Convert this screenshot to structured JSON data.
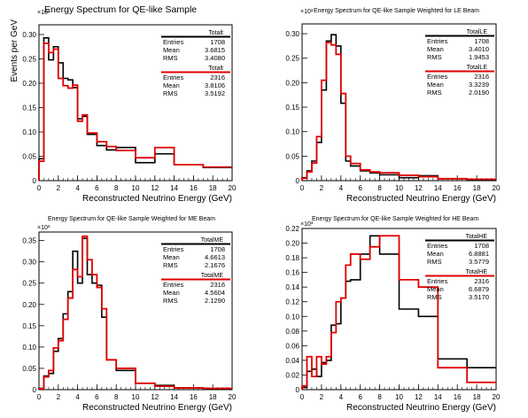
{
  "figure_ylabel": "Events per GeV",
  "colors": {
    "black": "#000000",
    "red": "#e00000"
  },
  "chart_data": [
    {
      "type": "line",
      "title": "Energy Spectrum for QE-like Sample",
      "xlabel": "Reconstructed Neutrino Energy (GeV)",
      "ylabel": "Events per GeV",
      "exponent_label": "×10³",
      "xlim": [
        0,
        20
      ],
      "ylim": [
        0,
        0.32
      ],
      "xticks": [
        "0",
        "2",
        "4",
        "6",
        "8",
        "10",
        "12",
        "14",
        "16",
        "18",
        "20"
      ],
      "yticks": [
        "0",
        "0.05",
        "0.10",
        "0.15",
        "0.20",
        "0.25",
        "0.30"
      ],
      "grid": false,
      "legend_position": "top-right",
      "bin_edges": [
        0,
        0.5,
        1,
        1.5,
        2,
        2.5,
        3,
        3.5,
        4,
        4.5,
        5,
        6,
        7,
        8,
        10,
        12,
        14,
        17,
        20
      ],
      "series": [
        {
          "name": "Totalt",
          "color": "#000000",
          "values": [
            0.045,
            0.293,
            0.248,
            0.275,
            0.242,
            0.21,
            0.207,
            0.191,
            0.127,
            0.132,
            0.095,
            0.072,
            0.063,
            0.068,
            0.037,
            0.055,
            0.033,
            0.027
          ]
        },
        {
          "name": "Totalt",
          "color": "#e00000",
          "values": [
            0.04,
            0.282,
            0.263,
            0.27,
            0.21,
            0.195,
            0.19,
            0.196,
            0.122,
            0.135,
            0.098,
            0.08,
            0.07,
            0.062,
            0.047,
            0.068,
            0.033,
            0.028
          ]
        }
      ],
      "stats": [
        {
          "name": "Totalt",
          "color": "#000000",
          "rows": [
            {
              "label": "Entries",
              "value": "1708"
            },
            {
              "label": "Mean",
              "value": "3.6815"
            },
            {
              "label": "RMS",
              "value": "3.4080"
            }
          ]
        },
        {
          "name": "Totalt",
          "color": "#e00000",
          "rows": [
            {
              "label": "Entries",
              "value": "2316"
            },
            {
              "label": "Mean",
              "value": "3.8106"
            },
            {
              "label": "RMS",
              "value": "3.5192"
            }
          ]
        }
      ]
    },
    {
      "type": "line",
      "title": "Energy Spectrum for QE-like Sample Weighted for LE Beam",
      "xlabel": "Reconstructed Neutrino Energy (GeV)",
      "ylabel": "",
      "exponent_label": "×10³",
      "xlim": [
        0,
        20
      ],
      "ylim": [
        0,
        0.32
      ],
      "xticks": [
        "0",
        "2",
        "4",
        "6",
        "8",
        "10",
        "12",
        "14",
        "16",
        "18",
        "20"
      ],
      "yticks": [
        "0",
        "0.05",
        "0.10",
        "0.15",
        "0.20",
        "0.25",
        "0.30"
      ],
      "grid": false,
      "legend_position": "top-right",
      "bin_edges": [
        0,
        0.5,
        1,
        1.5,
        2,
        2.5,
        3,
        3.5,
        4,
        4.5,
        5,
        6,
        7,
        8,
        10,
        12,
        14,
        17,
        20
      ],
      "series": [
        {
          "name": "TotalLE",
          "color": "#000000",
          "values": [
            0.006,
            0.02,
            0.04,
            0.078,
            0.185,
            0.285,
            0.298,
            0.275,
            0.158,
            0.04,
            0.03,
            0.02,
            0.016,
            0.012,
            0.006,
            0.01,
            0.004,
            0.002
          ]
        },
        {
          "name": "TotalLE",
          "color": "#e00000",
          "values": [
            0.005,
            0.018,
            0.036,
            0.09,
            0.205,
            0.282,
            0.277,
            0.258,
            0.178,
            0.05,
            0.035,
            0.022,
            0.018,
            0.016,
            0.011,
            0.008,
            0.004,
            0.003
          ]
        }
      ],
      "stats": [
        {
          "name": "TotalLE",
          "color": "#000000",
          "rows": [
            {
              "label": "Entries",
              "value": "1708"
            },
            {
              "label": "Mean",
              "value": "3.4010"
            },
            {
              "label": "RMS",
              "value": "1.9453"
            }
          ]
        },
        {
          "name": "TotalLE",
          "color": "#e00000",
          "rows": [
            {
              "label": "Entries",
              "value": "2316"
            },
            {
              "label": "Mean",
              "value": "3.3239"
            },
            {
              "label": "RMS",
              "value": "2.0190"
            }
          ]
        }
      ]
    },
    {
      "type": "line",
      "title": "Energy Spectrum for QE-like Sample Weighted for ME Beam",
      "xlabel": "Reconstructed Neutrino Energy (GeV)",
      "ylabel": "",
      "exponent_label": "×10³",
      "xlim": [
        0,
        20
      ],
      "ylim": [
        0,
        0.37
      ],
      "xticks": [
        "0",
        "2",
        "4",
        "6",
        "8",
        "10",
        "12",
        "14",
        "16",
        "18",
        "20"
      ],
      "yticks": [
        "0",
        "0.05",
        "0.10",
        "0.15",
        "0.20",
        "0.25",
        "0.30",
        "0.35"
      ],
      "grid": false,
      "legend_position": "top-right",
      "bin_edges": [
        0,
        0.5,
        1,
        1.5,
        2,
        2.5,
        3,
        3.5,
        4,
        4.5,
        5,
        5.5,
        6,
        6.5,
        7,
        8,
        10,
        12,
        14,
        17,
        20
      ],
      "series": [
        {
          "name": "TotalME",
          "color": "#000000",
          "values": [
            0.003,
            0.032,
            0.038,
            0.09,
            0.12,
            0.178,
            0.23,
            0.325,
            0.25,
            0.355,
            0.27,
            0.25,
            0.245,
            0.17,
            0.07,
            0.045,
            0.015,
            0.01,
            0.004,
            0.002
          ]
        },
        {
          "name": "TotalME",
          "color": "#e00000",
          "values": [
            0.002,
            0.03,
            0.045,
            0.098,
            0.115,
            0.165,
            0.215,
            0.282,
            0.265,
            0.36,
            0.305,
            0.27,
            0.24,
            0.19,
            0.07,
            0.05,
            0.015,
            0.008,
            0.004,
            0.003
          ]
        }
      ],
      "stats": [
        {
          "name": "TotalME",
          "color": "#000000",
          "rows": [
            {
              "label": "Entries",
              "value": "1708"
            },
            {
              "label": "Mean",
              "value": "4.6613"
            },
            {
              "label": "RMS",
              "value": "2.1676"
            }
          ]
        },
        {
          "name": "TotalME",
          "color": "#e00000",
          "rows": [
            {
              "label": "Entries",
              "value": "2316"
            },
            {
              "label": "Mean",
              "value": "4.5604"
            },
            {
              "label": "RMS",
              "value": "2.1290"
            }
          ]
        }
      ]
    },
    {
      "type": "line",
      "title": "Energy Spectrum for QE-like Sample Weighted for HE Beam",
      "xlabel": "Reconstructed Neutrino Energy (GeV)",
      "ylabel": "",
      "exponent_label": "×10³",
      "xlim": [
        0,
        20
      ],
      "ylim": [
        0,
        0.22
      ],
      "xticks": [
        "0",
        "2",
        "4",
        "6",
        "8",
        "10",
        "12",
        "14",
        "16",
        "18",
        "20"
      ],
      "yticks": [
        "0",
        "0.02",
        "0.04",
        "0.06",
        "0.08",
        "0.10",
        "0.12",
        "0.14",
        "0.16",
        "0.18",
        "0.20",
        "0.22"
      ],
      "grid": false,
      "legend_position": "top-right",
      "bin_edges": [
        0,
        0.5,
        1,
        1.5,
        2,
        2.5,
        3,
        3.5,
        4,
        4.5,
        5,
        6,
        7,
        8,
        10,
        12,
        14,
        17,
        20
      ],
      "series": [
        {
          "name": "TotalHE",
          "color": "#000000",
          "values": [
            0.003,
            0.025,
            0.028,
            0.018,
            0.037,
            0.04,
            0.088,
            0.09,
            0.125,
            0.148,
            0.15,
            0.185,
            0.21,
            0.185,
            0.11,
            0.1,
            0.042,
            0.03
          ]
        },
        {
          "name": "TotalHE",
          "color": "#e00000",
          "values": [
            0.005,
            0.045,
            0.018,
            0.045,
            0.035,
            0.045,
            0.078,
            0.12,
            0.125,
            0.17,
            0.185,
            0.178,
            0.195,
            0.21,
            0.15,
            0.14,
            0.03,
            0.01
          ]
        }
      ],
      "stats": [
        {
          "name": "TotalHE",
          "color": "#000000",
          "rows": [
            {
              "label": "Entries",
              "value": "1708"
            },
            {
              "label": "Mean",
              "value": "6.8881"
            },
            {
              "label": "RMS",
              "value": "3.5779"
            }
          ]
        },
        {
          "name": "TotalHE",
          "color": "#e00000",
          "rows": [
            {
              "label": "Entries",
              "value": "2316"
            },
            {
              "label": "Mean",
              "value": "6.6879"
            },
            {
              "label": "RMS",
              "value": "3.5170"
            }
          ]
        }
      ]
    }
  ]
}
